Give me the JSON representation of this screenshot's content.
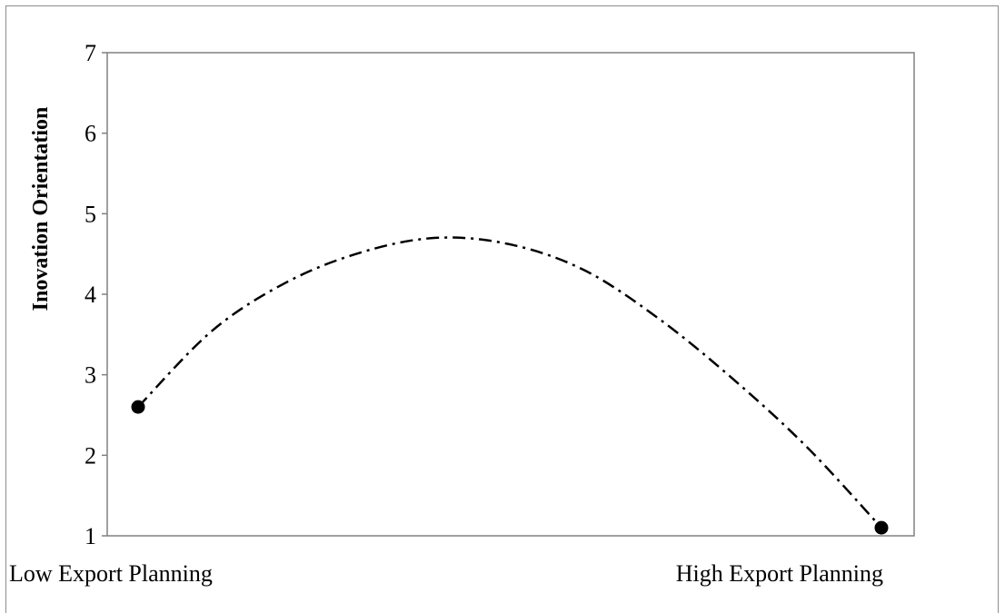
{
  "chart_data": {
    "type": "line",
    "title": "",
    "xlabel": "",
    "ylabel": "Inovation Orientation",
    "categories": [
      "Low Export Planning",
      "High Export Planning"
    ],
    "ylim": [
      1,
      7
    ],
    "yticks": [
      1,
      2,
      3,
      4,
      5,
      6,
      7
    ],
    "grid": false,
    "legend": "none",
    "line_style": "dash-dot",
    "line_color": "#000000",
    "endpoints": [
      {
        "x": 0,
        "y": 2.6
      },
      {
        "x": 1,
        "y": 1.1
      }
    ],
    "curve": [
      {
        "x": 0.0,
        "y": 2.6
      },
      {
        "x": 0.1,
        "y": 3.55
      },
      {
        "x": 0.2,
        "y": 4.15
      },
      {
        "x": 0.3,
        "y": 4.52
      },
      {
        "x": 0.4,
        "y": 4.7
      },
      {
        "x": 0.5,
        "y": 4.62
      },
      {
        "x": 0.6,
        "y": 4.3
      },
      {
        "x": 0.7,
        "y": 3.7
      },
      {
        "x": 0.8,
        "y": 2.95
      },
      {
        "x": 0.9,
        "y": 2.1
      },
      {
        "x": 1.0,
        "y": 1.1
      }
    ]
  }
}
